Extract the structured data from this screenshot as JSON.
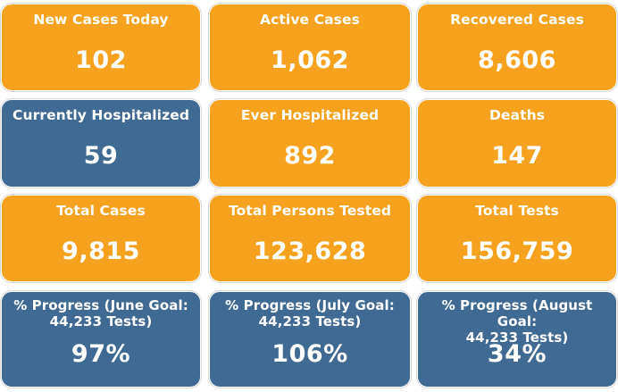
{
  "colors": {
    "orange": "#f6a21e",
    "blue": "#3e6a93",
    "text": "#ffffff"
  },
  "cards": [
    {
      "label": "New Cases Today",
      "value": "102",
      "color": "orange"
    },
    {
      "label": "Active Cases",
      "value": "1,062",
      "color": "orange"
    },
    {
      "label": "Recovered Cases",
      "value": "8,606",
      "color": "orange"
    },
    {
      "label": "Currently Hospitalized",
      "value": "59",
      "color": "blue"
    },
    {
      "label": "Ever Hospitalized",
      "value": "892",
      "color": "orange"
    },
    {
      "label": "Deaths",
      "value": "147",
      "color": "orange"
    },
    {
      "label": "Total Cases",
      "value": "9,815",
      "color": "orange"
    },
    {
      "label": "Total Persons Tested",
      "value": "123,628",
      "color": "orange"
    },
    {
      "label": "Total Tests",
      "value": "156,759",
      "color": "orange"
    },
    {
      "label_line1": "% Progress (June Goal:",
      "label_line2": "44,233 Tests)",
      "value": "97%",
      "color": "blue"
    },
    {
      "label_line1": "% Progress (July Goal:",
      "label_line2": "44,233 Tests)",
      "value": "106%",
      "color": "blue"
    },
    {
      "label_line1": "% Progress (August Goal:",
      "label_line2": "44,233 Tests)",
      "value": "34%",
      "color": "blue"
    }
  ]
}
